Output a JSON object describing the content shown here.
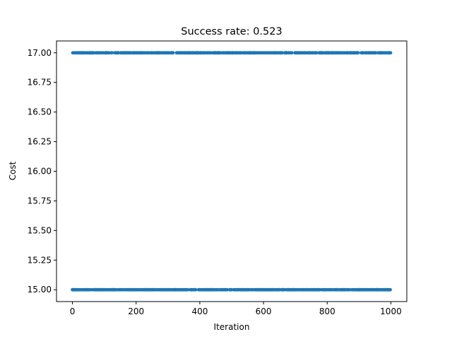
{
  "chart_data": {
    "type": "scatter",
    "title": "Success rate: 0.523",
    "xlabel": "Iteration",
    "ylabel": "Cost",
    "xlim": [
      -50,
      1050
    ],
    "ylim": [
      14.9,
      17.1
    ],
    "xticks": [
      0,
      200,
      400,
      600,
      800,
      1000
    ],
    "xtick_labels": [
      "0",
      "200",
      "400",
      "600",
      "800",
      "1000"
    ],
    "yticks": [
      15.0,
      15.25,
      15.5,
      15.75,
      16.0,
      16.25,
      16.5,
      16.75,
      17.0
    ],
    "ytick_labels": [
      "15.00",
      "15.25",
      "15.50",
      "15.75",
      "16.00",
      "16.25",
      "16.50",
      "16.75",
      "17.00"
    ],
    "grid": false,
    "series": [
      {
        "color": "#1f77b4",
        "x_start": 0,
        "x_end": 999,
        "x_step": 1,
        "y_levels": [
          15.0,
          17.0
        ],
        "values_fraction_at_upper_level": 0.477
      }
    ]
  }
}
